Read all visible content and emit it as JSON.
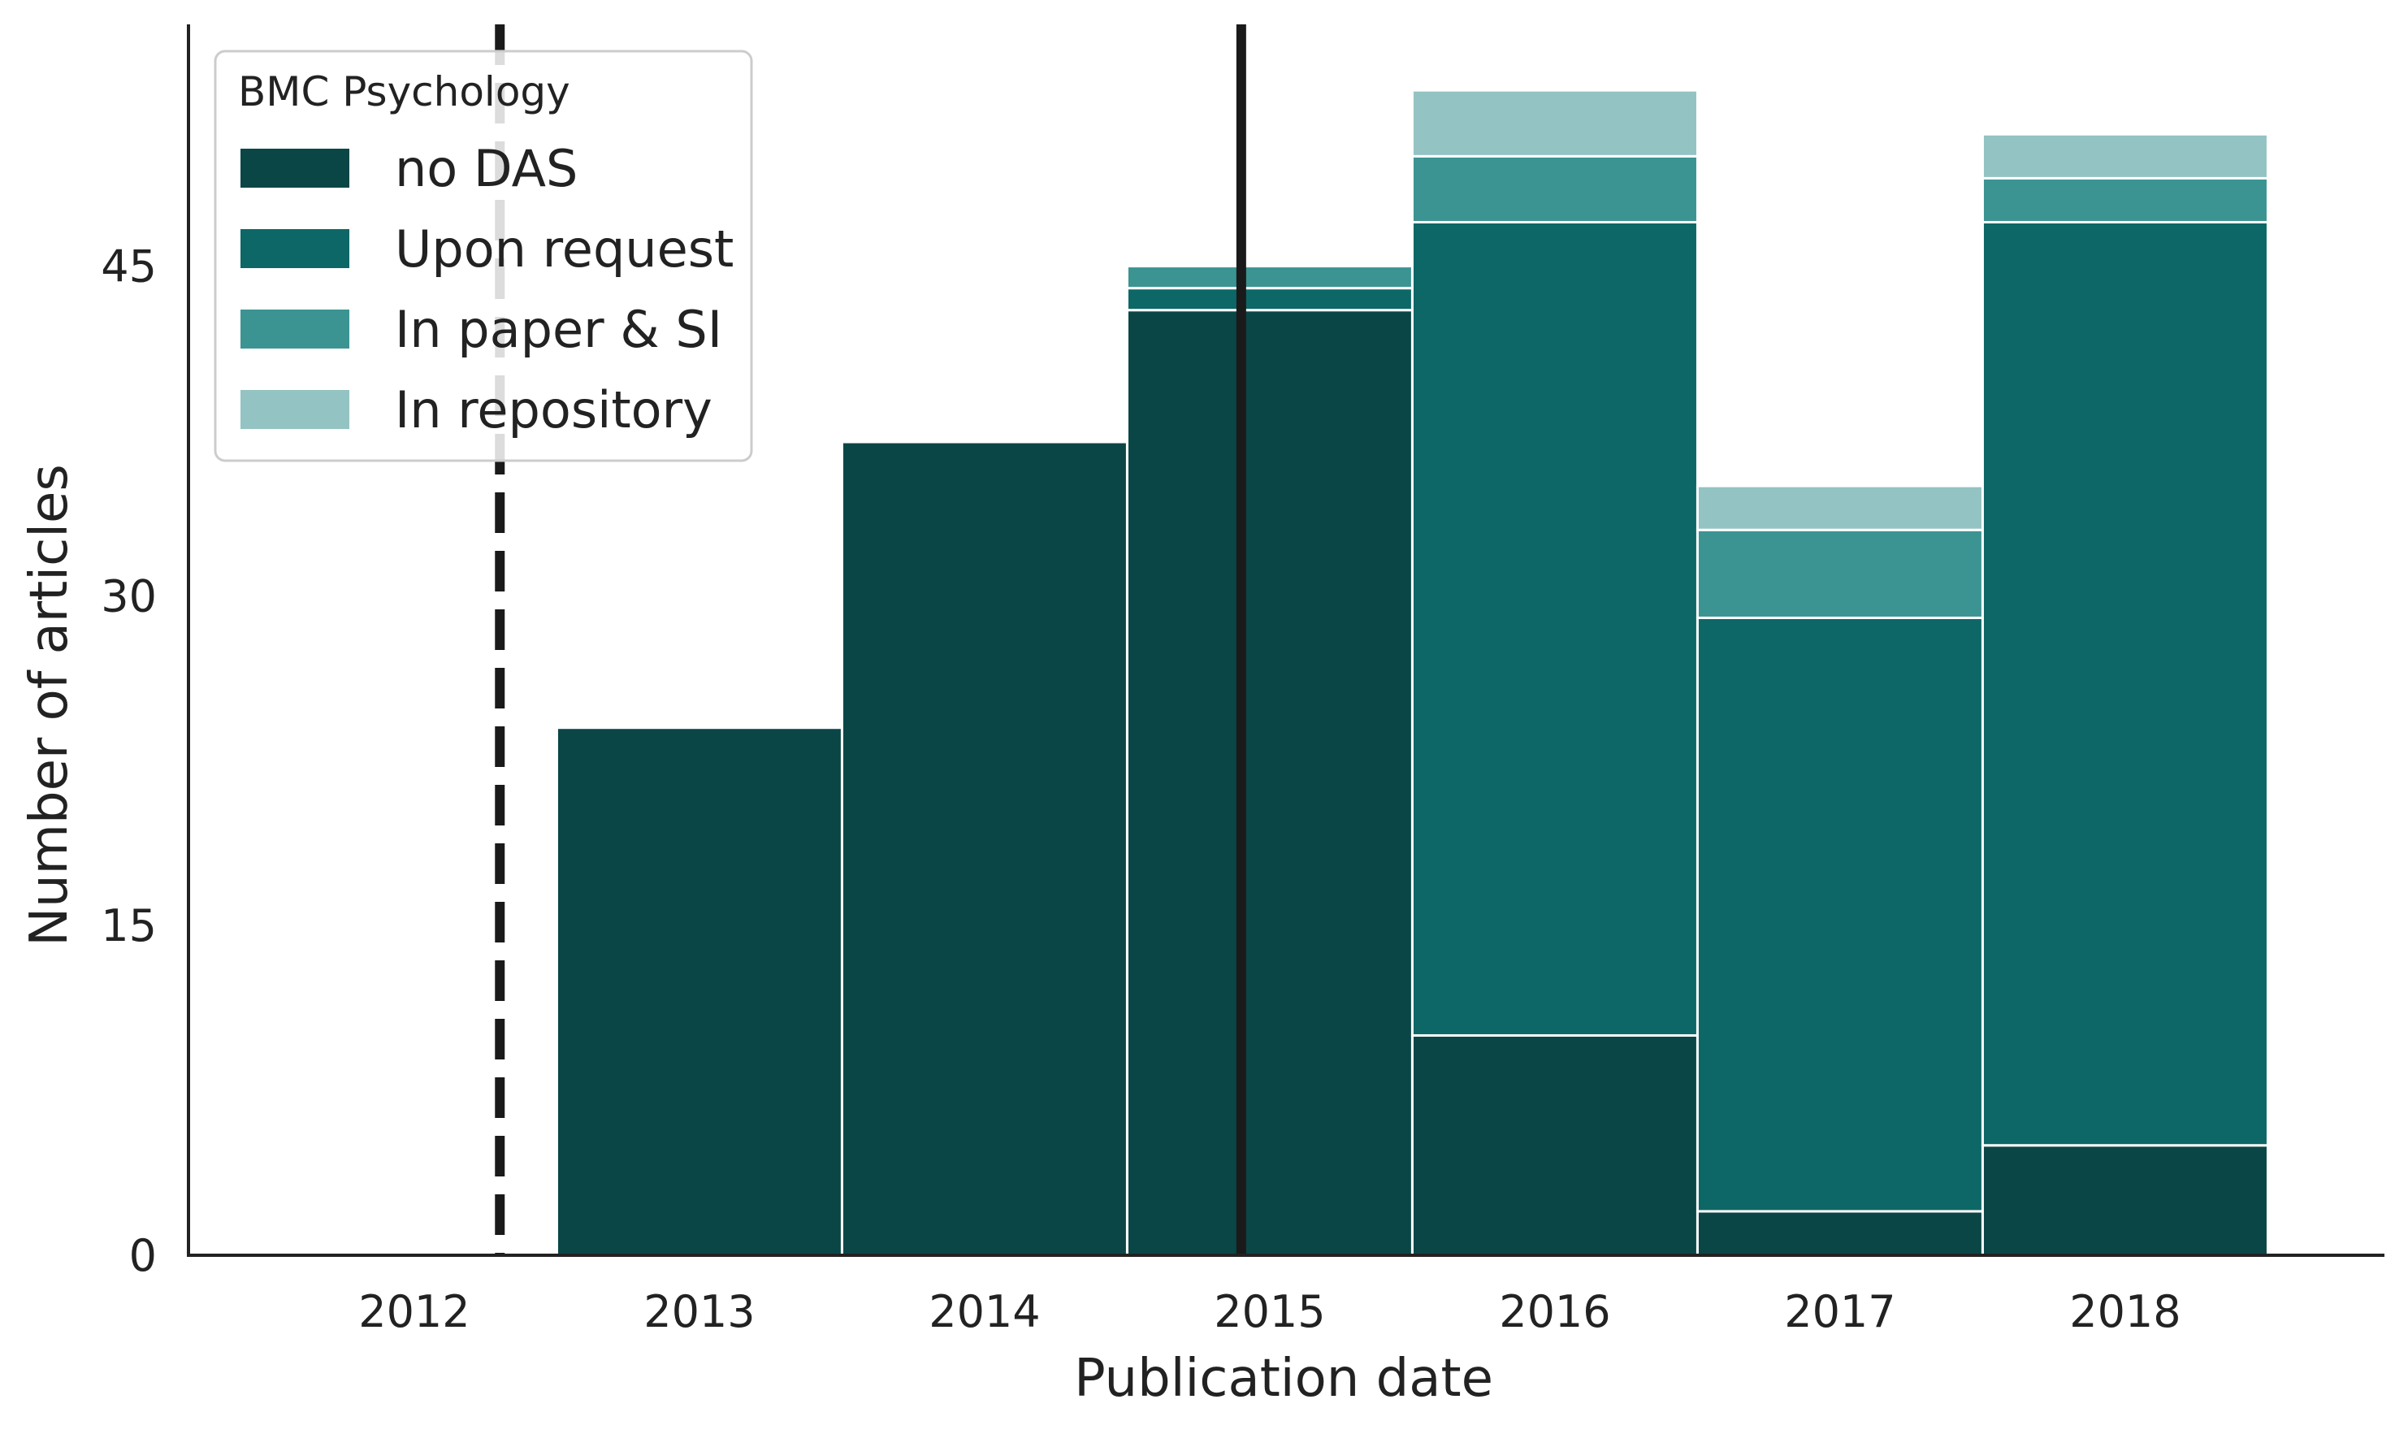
{
  "chart_data": {
    "type": "bar",
    "stacked": true,
    "xlabel": "Publication date",
    "ylabel": "Number of articles",
    "categories": [
      "2013",
      "2014",
      "2015",
      "2016",
      "2017",
      "2018"
    ],
    "x_ticks": [
      "2012",
      "2013",
      "2014",
      "2015",
      "2016",
      "2017",
      "2018"
    ],
    "y_ticks": [
      "0",
      "15",
      "30",
      "45"
    ],
    "ylim": [
      0,
      56
    ],
    "series": [
      {
        "name": "no DAS",
        "color": "#0b4647",
        "values": [
          24,
          37,
          43,
          10,
          2,
          5
        ]
      },
      {
        "name": "Upon request",
        "color": "#0e6767",
        "values": [
          0,
          0,
          1,
          37,
          27,
          42
        ]
      },
      {
        "name": "In paper & SI",
        "color": "#3b9492",
        "values": [
          0,
          0,
          1,
          3,
          4,
          2
        ]
      },
      {
        "name": "In repository",
        "color": "#93c3c2",
        "values": [
          0,
          0,
          0,
          3,
          2,
          2
        ]
      }
    ],
    "legend": {
      "title": "BMC Psychology",
      "placement": "top-left"
    },
    "reference_lines": [
      {
        "style": "dashed",
        "x_year": 2012.3
      },
      {
        "style": "solid",
        "x_year": 2014.9
      }
    ],
    "grid": false
  }
}
